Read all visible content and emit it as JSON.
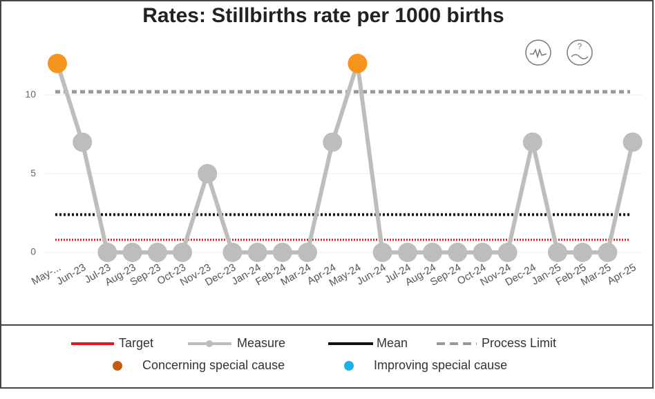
{
  "chart_data": {
    "type": "line",
    "title": "Rates: Stillbirths rate per 1000 births",
    "categories": [
      "May-...",
      "Jun-23",
      "Jul-23",
      "Aug-23",
      "Sep-23",
      "Oct-23",
      "Nov-23",
      "Dec-23",
      "Jan-24",
      "Feb-24",
      "Mar-24",
      "Apr-24",
      "May-24",
      "Jun-24",
      "Jul-24",
      "Aug-24",
      "Sep-24",
      "Oct-24",
      "Nov-24",
      "Dec-24",
      "Jan-25",
      "Feb-25",
      "Mar-25",
      "Apr-25"
    ],
    "series": [
      {
        "name": "Measure",
        "color": "#bdbdbd",
        "values": [
          12,
          7,
          0,
          0,
          0,
          0,
          5,
          0,
          0,
          0,
          0,
          7,
          12,
          0,
          0,
          0,
          0,
          0,
          0,
          7,
          0,
          0,
          0,
          7
        ],
        "point_colors": [
          "#f7941d",
          "#bdbdbd",
          "#bdbdbd",
          "#bdbdbd",
          "#bdbdbd",
          "#bdbdbd",
          "#bdbdbd",
          "#bdbdbd",
          "#bdbdbd",
          "#bdbdbd",
          "#bdbdbd",
          "#bdbdbd",
          "#f7941d",
          "#bdbdbd",
          "#bdbdbd",
          "#bdbdbd",
          "#bdbdbd",
          "#bdbdbd",
          "#bdbdbd",
          "#bdbdbd",
          "#bdbdbd",
          "#bdbdbd",
          "#bdbdbd",
          "#bdbdbd"
        ]
      }
    ],
    "reference_lines": [
      {
        "name": "Target",
        "value": 0.8,
        "color": "#e8141b",
        "style": "dotted"
      },
      {
        "name": "Mean",
        "value": 2.4,
        "color": "#111111",
        "style": "dotted"
      },
      {
        "name": "Process Limit",
        "value": 10.2,
        "color": "#999999",
        "style": "dashed"
      }
    ],
    "special_cause_legend": [
      {
        "name": "Concerning special cause",
        "color": "#c55a11"
      },
      {
        "name": "Improving special cause",
        "color": "#1ab0e8"
      }
    ],
    "ylim": [
      0,
      13
    ],
    "yticks": [
      0,
      5,
      10
    ],
    "grid": true
  }
}
